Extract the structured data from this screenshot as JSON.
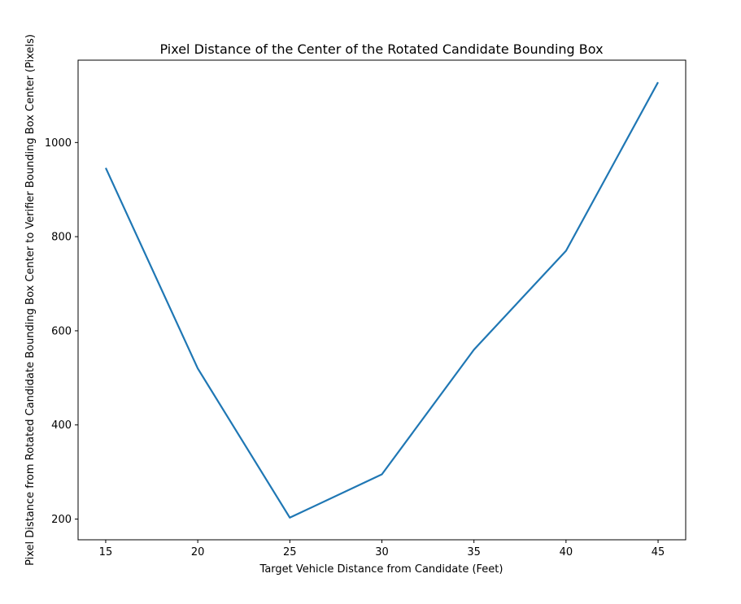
{
  "chart_data": {
    "type": "line",
    "title": "Pixel Distance of the Center of the Rotated Candidate Bounding Box",
    "xlabel": "Target Vehicle Distance from Candidate (Feet)",
    "ylabel": "Pixel Distance from Rotated Candidate Bounding Box Center to Verifier Bounding Box Center (Pixels)",
    "x": [
      15,
      20,
      25,
      30,
      35,
      40,
      45
    ],
    "series": [
      {
        "values": [
          946,
          520,
          203,
          295,
          560,
          770,
          1128
        ],
        "color": "#1f77b4"
      }
    ],
    "xlim": [
      13.5,
      46.5
    ],
    "ylim": [
      156,
      1175
    ],
    "xticks": [
      15,
      20,
      25,
      30,
      35,
      40,
      45
    ],
    "yticks": [
      200,
      400,
      600,
      800,
      1000
    ],
    "grid": false,
    "legend": "none"
  }
}
